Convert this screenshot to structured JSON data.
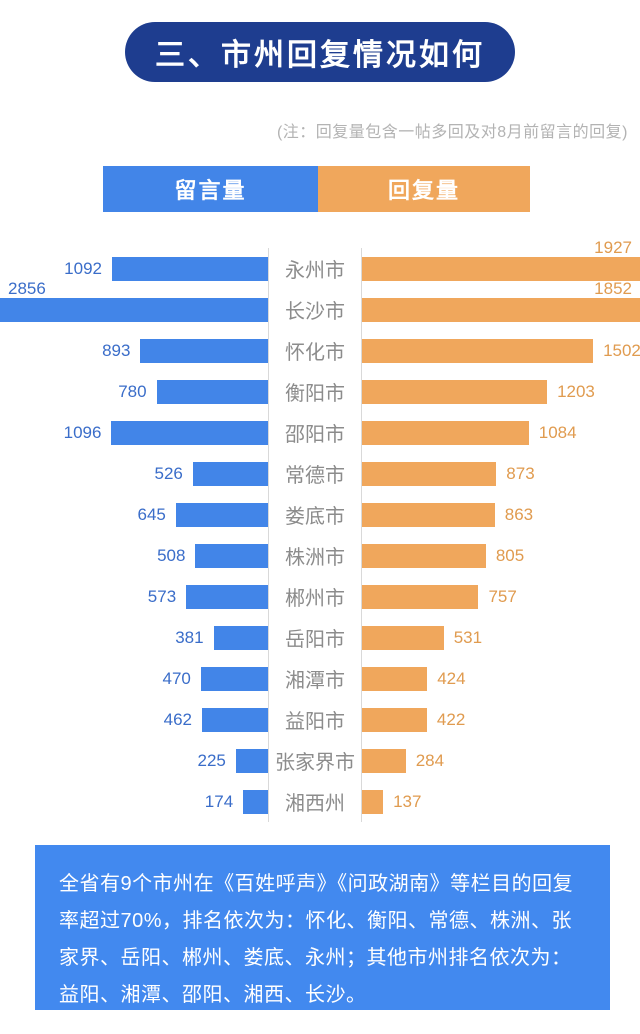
{
  "header": {
    "title": "三、市州回复情况如何"
  },
  "note": "(注：回复量包含一帖多回及对8月前留言的回复)",
  "legend": {
    "messages_label": "留言量",
    "replies_label": "回复量"
  },
  "colors": {
    "banner_navy": "#1e3d8f",
    "bar_blue": "#4285e8",
    "bar_orange": "#f0a75c",
    "value_blue": "#3a6dc9",
    "value_orange": "#e09b4f",
    "city_gray": "#8c8c8c",
    "note_gray": "#b3b3b3",
    "axis_gray": "#d9d9d9",
    "summary_blue": "#4289ef"
  },
  "chart_data": {
    "type": "bar",
    "orientation": "horizontal-bidirectional",
    "title": "三、市州回复情况如何",
    "note": "(注：回复量包含一帖多回及对8月前留言的回复)",
    "categories": [
      "永州市",
      "长沙市",
      "怀化市",
      "衡阳市",
      "邵阳市",
      "常德市",
      "娄底市",
      "株洲市",
      "郴州市",
      "岳阳市",
      "湘潭市",
      "益阳市",
      "张家界市",
      "湘西州"
    ],
    "series": [
      {
        "name": "留言量",
        "side": "left",
        "color": "#4285e8",
        "values": [
          1092,
          2856,
          893,
          780,
          1096,
          526,
          645,
          508,
          573,
          381,
          470,
          462,
          225,
          174
        ]
      },
      {
        "name": "回复量",
        "side": "right",
        "color": "#f0a75c",
        "values": [
          1927,
          1852,
          1502,
          1203,
          1084,
          873,
          863,
          805,
          757,
          531,
          424,
          422,
          284,
          137
        ]
      }
    ],
    "legend_position": "top",
    "grid": false,
    "value_labels": true
  },
  "summary": {
    "text": "全省有9个市州在《百姓呼声》《问政湖南》等栏目的回复率超过70%，排名依次为：怀化、衡阳、常德、株洲、张家界、岳阳、郴州、娄底、永州；其他市州排名依次为：益阳、湘潭、邵阳、湘西、长沙。"
  }
}
